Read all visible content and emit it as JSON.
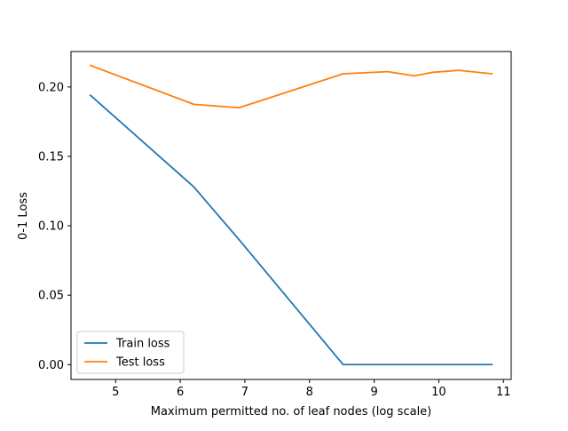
{
  "chart_data": {
    "type": "line",
    "title": "",
    "xlabel": "Maximum permitted no. of leaf nodes (log scale)",
    "ylabel": "0-1 Loss",
    "xlim": [
      4.31,
      11.12
    ],
    "ylim": [
      -0.0107,
      0.2255
    ],
    "xticks": [
      5,
      6,
      7,
      8,
      9,
      10,
      11
    ],
    "xtick_labels": [
      "5",
      "6",
      "7",
      "8",
      "9",
      "10",
      "11"
    ],
    "yticks": [
      0.0,
      0.05,
      0.1,
      0.15,
      0.2
    ],
    "ytick_labels": [
      "0.00",
      "0.05",
      "0.10",
      "0.15",
      "0.20"
    ],
    "grid": false,
    "legend_position": "lower-left",
    "series": [
      {
        "name": "Train loss",
        "color": "#1f77b4",
        "x": [
          4.61,
          6.21,
          6.91,
          8.52,
          9.21,
          9.62,
          9.9,
          10.31,
          10.82
        ],
        "y": [
          0.194,
          0.128,
          0.09,
          0.0,
          0.0,
          0.0,
          0.0,
          0.0,
          0.0
        ]
      },
      {
        "name": "Test loss",
        "color": "#ff7f0e",
        "x": [
          4.61,
          6.21,
          6.91,
          8.52,
          9.21,
          9.62,
          9.9,
          10.31,
          10.82
        ],
        "y": [
          0.2155,
          0.1875,
          0.185,
          0.2095,
          0.211,
          0.208,
          0.2105,
          0.212,
          0.2095
        ]
      }
    ]
  }
}
